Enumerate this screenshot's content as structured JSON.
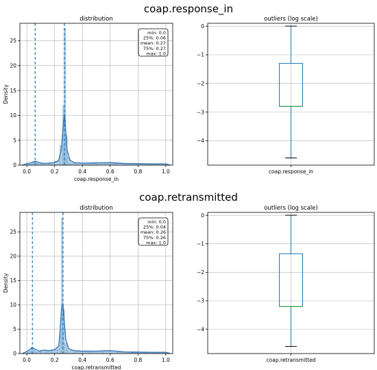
{
  "figures": [
    {
      "title": "coap.response_in",
      "dist": {
        "title": "distribution",
        "xlabel": "coap.response_in",
        "ylabel": "Density",
        "stats": [
          "min: 0.0",
          "25%: 0.06",
          "mean: 0.27",
          "75%: 0.27",
          "max: 1.0"
        ]
      },
      "box": {
        "title": "outliers (log scale)",
        "xticklabel": "coap.response_in"
      }
    },
    {
      "title": "coap.retransmitted",
      "dist": {
        "title": "distribution",
        "xlabel": "coap.retransmitted",
        "ylabel": "Density",
        "stats": [
          "min: 0.0",
          "25%: 0.04",
          "mean: 0.26",
          "75%: 0.26",
          "max: 1.0"
        ]
      },
      "box": {
        "title": "outliers (log scale)",
        "xticklabel": "coap.retransmitted"
      }
    }
  ],
  "colors": {
    "hist": "#8fb8d9",
    "kde": "#3a7ab5",
    "quartile_line": "#1f77b4",
    "median_box": "#2ca02c",
    "box_edge": "#1f77b4",
    "grid": "#b0b0b0"
  },
  "chart_data": [
    {
      "type": "histogram",
      "title": "distribution",
      "xlabel": "coap.response_in",
      "ylabel": "Density",
      "xlim": [
        -0.05,
        1.05
      ],
      "ylim": [
        0,
        28.5
      ],
      "xticks": [
        0.0,
        0.2,
        0.4,
        0.6,
        0.8,
        1.0
      ],
      "yticks": [
        0,
        5,
        10,
        15,
        20,
        25
      ],
      "grid": true,
      "hist_bins": [
        {
          "x0": 0.0,
          "x1": 0.01,
          "y": 0.3
        },
        {
          "x0": 0.01,
          "x1": 0.02,
          "y": 0.2
        },
        {
          "x0": 0.02,
          "x1": 0.03,
          "y": 0.2
        },
        {
          "x0": 0.03,
          "x1": 0.04,
          "y": 0.4
        },
        {
          "x0": 0.04,
          "x1": 0.05,
          "y": 0.6
        },
        {
          "x0": 0.05,
          "x1": 0.06,
          "y": 0.8
        },
        {
          "x0": 0.06,
          "x1": 0.07,
          "y": 0.6
        },
        {
          "x0": 0.07,
          "x1": 0.08,
          "y": 0.4
        },
        {
          "x0": 0.08,
          "x1": 0.12,
          "y": 0.3
        },
        {
          "x0": 0.12,
          "x1": 0.16,
          "y": 0.4
        },
        {
          "x0": 0.16,
          "x1": 0.2,
          "y": 0.5
        },
        {
          "x0": 0.2,
          "x1": 0.24,
          "y": 0.8
        },
        {
          "x0": 0.24,
          "x1": 0.26,
          "y": 4.0
        },
        {
          "x0": 0.26,
          "x1": 0.27,
          "y": 12.0
        },
        {
          "x0": 0.27,
          "x1": 0.28,
          "y": 27.5
        },
        {
          "x0": 0.28,
          "x1": 0.29,
          "y": 6.0
        },
        {
          "x0": 0.29,
          "x1": 0.31,
          "y": 1.5
        },
        {
          "x0": 0.31,
          "x1": 0.4,
          "y": 0.4
        },
        {
          "x0": 0.4,
          "x1": 0.5,
          "y": 0.3
        },
        {
          "x0": 0.5,
          "x1": 0.6,
          "y": 0.4
        },
        {
          "x0": 0.6,
          "x1": 0.7,
          "y": 0.3
        },
        {
          "x0": 0.7,
          "x1": 0.8,
          "y": 0.25
        },
        {
          "x0": 0.8,
          "x1": 0.9,
          "y": 0.2
        },
        {
          "x0": 0.9,
          "x1": 1.0,
          "y": 0.2
        }
      ],
      "kde": {
        "x": [
          -0.03,
          0.0,
          0.03,
          0.06,
          0.09,
          0.12,
          0.16,
          0.2,
          0.23,
          0.25,
          0.26,
          0.27,
          0.28,
          0.29,
          0.31,
          0.34,
          0.4,
          0.5,
          0.6,
          0.7,
          0.8,
          0.9,
          1.0,
          1.03
        ],
        "y": [
          0.05,
          0.3,
          0.5,
          0.8,
          0.5,
          0.35,
          0.4,
          0.5,
          1.0,
          3.5,
          7.5,
          10.3,
          7.0,
          3.0,
          1.0,
          0.5,
          0.4,
          0.45,
          0.5,
          0.35,
          0.3,
          0.25,
          0.25,
          0.05
        ]
      },
      "vlines": [
        0.06,
        0.27,
        0.27
      ]
    },
    {
      "type": "box",
      "title": "outliers (log scale)",
      "categories": [
        "coap.response_in"
      ],
      "ylim": [
        -4.85,
        0.1
      ],
      "yticks": [
        0,
        -1,
        -2,
        -3,
        -4
      ],
      "grid": true,
      "whisker_low": -4.6,
      "q1": -2.8,
      "median": -2.8,
      "q3": -1.3,
      "whisker_high": 0.0
    },
    {
      "type": "histogram",
      "title": "distribution",
      "xlabel": "coap.retransmitted",
      "ylabel": "Density",
      "xlim": [
        -0.05,
        1.05
      ],
      "ylim": [
        0,
        29
      ],
      "xticks": [
        0.0,
        0.2,
        0.4,
        0.6,
        0.8,
        1.0
      ],
      "yticks": [
        0,
        5,
        10,
        15,
        20,
        25
      ],
      "grid": true,
      "hist_bins": [
        {
          "x0": 0.0,
          "x1": 0.01,
          "y": 0.4
        },
        {
          "x0": 0.01,
          "x1": 0.02,
          "y": 0.3
        },
        {
          "x0": 0.02,
          "x1": 0.03,
          "y": 0.5
        },
        {
          "x0": 0.03,
          "x1": 0.04,
          "y": 1.3
        },
        {
          "x0": 0.04,
          "x1": 0.05,
          "y": 1.0
        },
        {
          "x0": 0.05,
          "x1": 0.06,
          "y": 0.6
        },
        {
          "x0": 0.06,
          "x1": 0.1,
          "y": 0.4
        },
        {
          "x0": 0.1,
          "x1": 0.14,
          "y": 0.7
        },
        {
          "x0": 0.14,
          "x1": 0.18,
          "y": 0.6
        },
        {
          "x0": 0.18,
          "x1": 0.22,
          "y": 0.7
        },
        {
          "x0": 0.22,
          "x1": 0.24,
          "y": 1.0
        },
        {
          "x0": 0.24,
          "x1": 0.25,
          "y": 5.0
        },
        {
          "x0": 0.25,
          "x1": 0.26,
          "y": 27.8
        },
        {
          "x0": 0.26,
          "x1": 0.27,
          "y": 9.0
        },
        {
          "x0": 0.27,
          "x1": 0.29,
          "y": 2.0
        },
        {
          "x0": 0.29,
          "x1": 0.35,
          "y": 0.6
        },
        {
          "x0": 0.35,
          "x1": 0.45,
          "y": 0.4
        },
        {
          "x0": 0.45,
          "x1": 0.55,
          "y": 0.3
        },
        {
          "x0": 0.55,
          "x1": 0.65,
          "y": 0.5
        },
        {
          "x0": 0.65,
          "x1": 0.75,
          "y": 0.3
        },
        {
          "x0": 0.75,
          "x1": 0.85,
          "y": 0.2
        },
        {
          "x0": 0.85,
          "x1": 1.0,
          "y": 0.2
        }
      ],
      "kde": {
        "x": [
          -0.03,
          0.0,
          0.02,
          0.04,
          0.06,
          0.09,
          0.12,
          0.16,
          0.2,
          0.23,
          0.24,
          0.25,
          0.26,
          0.27,
          0.28,
          0.3,
          0.34,
          0.4,
          0.5,
          0.6,
          0.7,
          0.8,
          0.9,
          1.0,
          1.03
        ],
        "y": [
          0.05,
          0.4,
          0.8,
          1.2,
          0.9,
          0.5,
          0.7,
          0.6,
          0.8,
          1.5,
          5.0,
          9.5,
          10.3,
          6.5,
          3.0,
          1.0,
          0.6,
          0.5,
          0.5,
          0.6,
          0.35,
          0.3,
          0.25,
          0.25,
          0.05
        ]
      },
      "vlines": [
        0.04,
        0.26,
        0.26
      ]
    },
    {
      "type": "box",
      "title": "outliers (log scale)",
      "categories": [
        "coap.retransmitted"
      ],
      "ylim": [
        -4.85,
        0.1
      ],
      "yticks": [
        0,
        -1,
        -2,
        -3,
        -4
      ],
      "grid": true,
      "whisker_low": -4.6,
      "q1": -3.2,
      "median": -3.2,
      "q3": -1.35,
      "whisker_high": 0.0
    }
  ]
}
